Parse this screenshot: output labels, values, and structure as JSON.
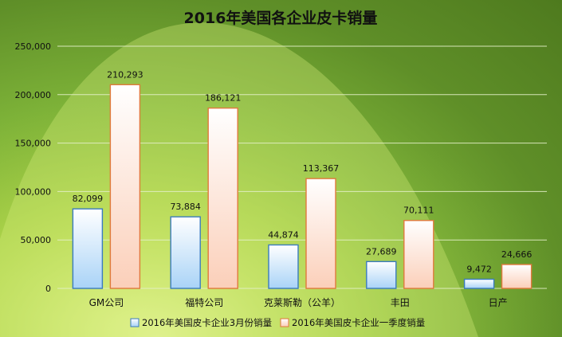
{
  "chart_data": {
    "type": "bar",
    "title": "2016年美国各企业皮卡销量",
    "categories": [
      "GM公司",
      "福特公司",
      "克莱斯勒（公羊）",
      "丰田",
      "日产"
    ],
    "series": [
      {
        "name": "2016年美国皮卡企业3月份销量",
        "values": [
          82099,
          73884,
          44874,
          27689,
          9472
        ],
        "labels": [
          "82,099",
          "73,884",
          "44,874",
          "27,689",
          "9,472"
        ],
        "color": "#bfe0fb"
      },
      {
        "name": "2016年美国皮卡企业一季度销量",
        "values": [
          210293,
          186121,
          113367,
          70111,
          24666
        ],
        "labels": [
          "210,293",
          "186,121",
          "113,367",
          "70,111",
          "24,666"
        ],
        "color": "#fde1d2"
      }
    ],
    "ylim": [
      0,
      250000
    ],
    "yticks": [
      0,
      50000,
      100000,
      150000,
      200000,
      250000
    ],
    "ytick_labels": [
      "0",
      "50,000",
      "100,000",
      "150,000",
      "200,000",
      "250,000"
    ],
    "xlabel": "",
    "ylabel": "",
    "grid": true,
    "legend_position": "bottom"
  }
}
